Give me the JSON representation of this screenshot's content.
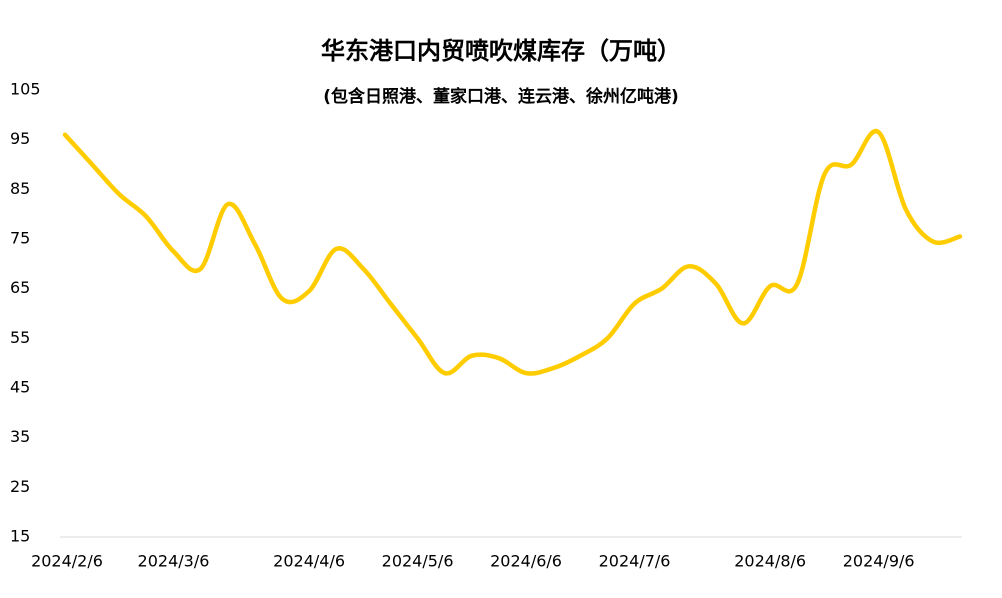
{
  "chart_data": {
    "type": "line",
    "title": "华东港口内贸喷吹煤库存（万吨）",
    "subtitle": "(包含日照港、董家口港、连云港、徐州亿吨港)",
    "categories": [
      "2024/2/6",
      null,
      null,
      null,
      "2024/3/6",
      null,
      null,
      null,
      null,
      "2024/4/6",
      null,
      null,
      null,
      "2024/5/6",
      null,
      null,
      null,
      "2024/6/6",
      null,
      null,
      null,
      "2024/7/6",
      null,
      null,
      null,
      null,
      "2024/8/6",
      null,
      null,
      null,
      "2024/9/6",
      null,
      null,
      null
    ],
    "series": [
      {
        "name": "库存",
        "color": "#ffcc00",
        "values": [
          96,
          90,
          84,
          79.5,
          72.5,
          69,
          82,
          74,
          63,
          64.5,
          73,
          69,
          62,
          55,
          48,
          51.5,
          51,
          48,
          49,
          51.5,
          55,
          62,
          65,
          69.5,
          66,
          58,
          65.5,
          66,
          88,
          90,
          96.5,
          81,
          74.5,
          75.5
        ]
      }
    ],
    "ylim": [
      15,
      105
    ],
    "yticks": [
      15,
      25,
      35,
      45,
      55,
      65,
      75,
      85,
      95,
      105
    ],
    "grid": false
  }
}
